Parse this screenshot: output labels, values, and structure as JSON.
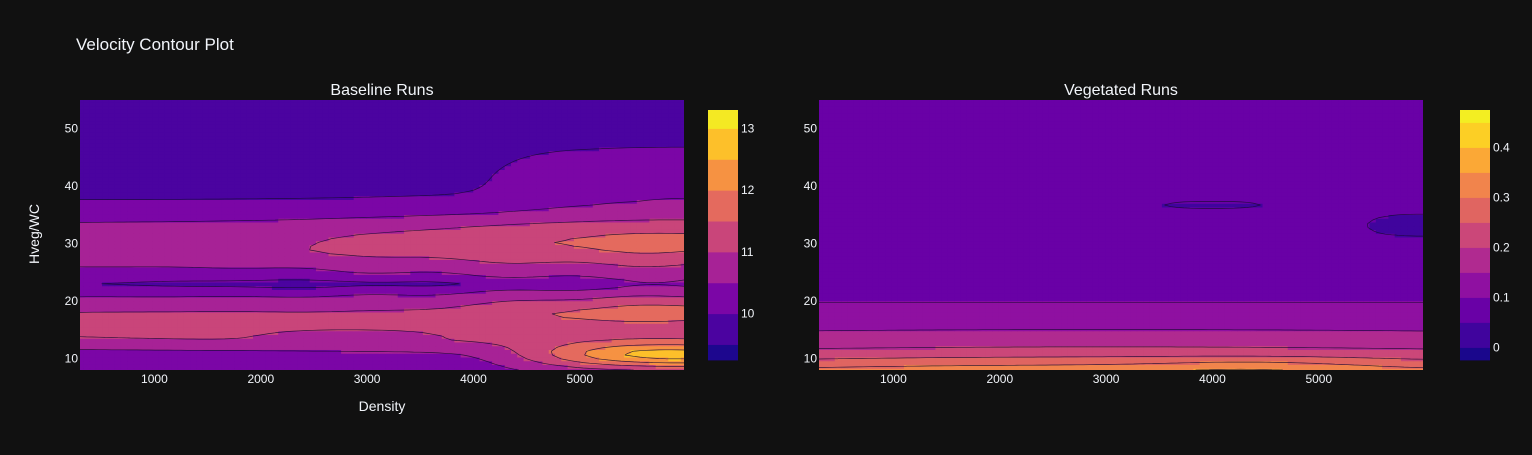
{
  "page_title": "Velocity Contour Plot",
  "colors": {
    "background": "#111111",
    "text": "#f2f5fa",
    "contour_line": "#1a0a33",
    "scale": [
      "#0d0887",
      "#46039f",
      "#7201a8",
      "#9c179e",
      "#bd3786",
      "#d8576b",
      "#ed7953",
      "#fb9f3a",
      "#fdca26",
      "#f0f921"
    ]
  },
  "chart_data": [
    {
      "type": "contour",
      "title": "Baseline Runs",
      "xlabel": "Density",
      "ylabel": "Hveg/WC",
      "xlim": [
        300,
        5980
      ],
      "ylim": [
        8,
        55
      ],
      "x_ticks": [
        1000,
        2000,
        3000,
        4000,
        5000
      ],
      "y_ticks": [
        10,
        20,
        30,
        40,
        50
      ],
      "colorbar": {
        "range": [
          9.25,
          13.3
        ],
        "ticks": [
          10,
          11,
          12,
          13
        ],
        "levels": [
          9.5,
          10.0,
          10.5,
          11.0,
          11.5,
          12.0,
          12.5,
          13.0
        ]
      }
    },
    {
      "type": "contour",
      "title": "Vegetated Runs",
      "xlabel": "",
      "ylabel": "",
      "xlim": [
        300,
        5980
      ],
      "ylim": [
        8,
        55
      ],
      "x_ticks": [
        1000,
        2000,
        3000,
        4000,
        5000
      ],
      "y_ticks": [
        10,
        20,
        30,
        40,
        50
      ],
      "colorbar": {
        "range": [
          -0.025,
          0.475
        ],
        "ticks": [
          0,
          0.1,
          0.2,
          0.3,
          0.4
        ],
        "levels": [
          0.0,
          0.05,
          0.1,
          0.15,
          0.2,
          0.25,
          0.3,
          0.35,
          0.4,
          0.45
        ]
      }
    }
  ]
}
